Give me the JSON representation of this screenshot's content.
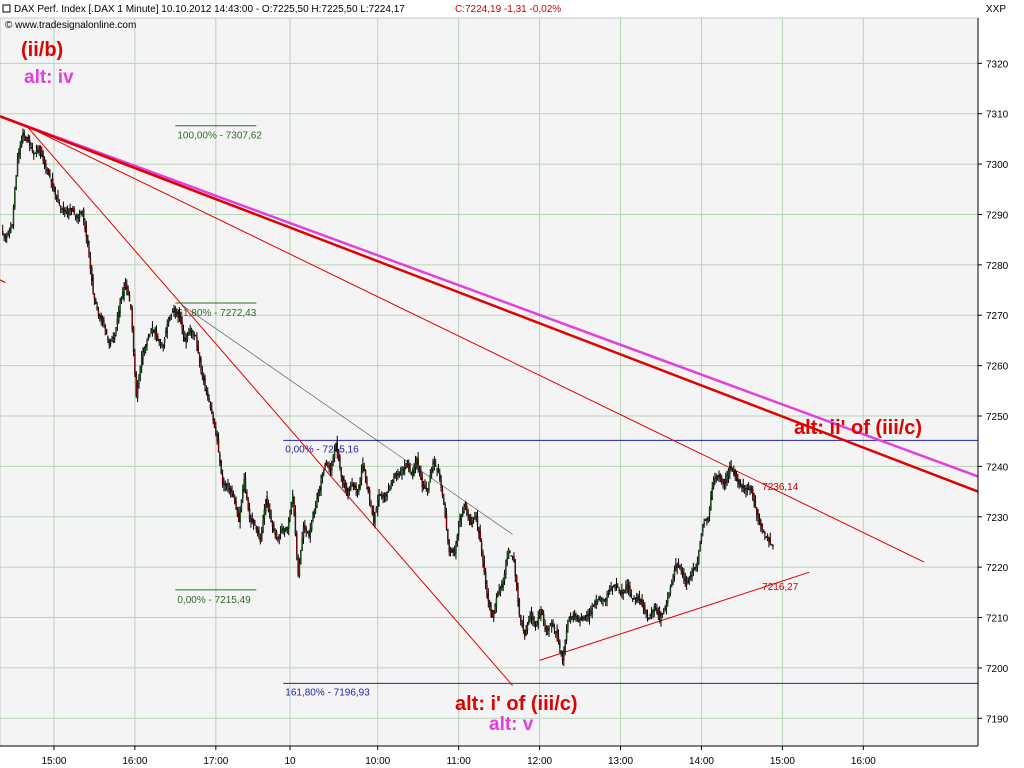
{
  "header": {
    "title": "DAX Perf. Index [.DAX  1 Minute] 10.10.2012 14:43:00 - O:7225,50 H:7225,50 L:7224,17",
    "change": "C:7224,19 -1,31 -0,02%",
    "source": "© www.tradesignalonline.com",
    "axis_label": "XXP"
  },
  "wave_labels": {
    "top_main": "(ii/b)",
    "top_alt": "alt: iv",
    "bottom_main": "alt: i' of (iii/c)",
    "bottom_alt": "alt: v",
    "right_main": "alt: ii' of (iii/c)"
  },
  "colors": {
    "background": "#f4f4f4",
    "grid": "#b9d4b9",
    "up_candle": "#1a8a1a",
    "down_candle": "#cc0000",
    "wick": "#000000",
    "trend_red": "#e00000",
    "trend_magenta": "#e040e0",
    "fib_green": "#2d6b2d",
    "fib_blue": "#2222aa",
    "label_red": "#e00000",
    "label_magenta": "#e040e0"
  },
  "chart_data": {
    "type": "candlestick",
    "x_tick_labels": [
      "15:00",
      "16:00",
      "17:00",
      "10",
      "10:00",
      "11:00",
      "12:00",
      "13:00",
      "14:00",
      "15:00",
      "16:00"
    ],
    "x_tick_positions": [
      3,
      9,
      15,
      20.5,
      27,
      33,
      39,
      45,
      51,
      57,
      63
    ],
    "x_range": [
      -1,
      71.5
    ],
    "y_ticks": [
      7190,
      7200,
      7210,
      7220,
      7230,
      7240,
      7250,
      7260,
      7270,
      7280,
      7290,
      7300,
      7310,
      7320
    ],
    "y_tick_labels": [
      "7190",
      "7200",
      "7210",
      "7220",
      "7230",
      "7240",
      "7250",
      "7260",
      "7270",
      "7280",
      "7290",
      "7300",
      "7310",
      "7320"
    ],
    "ylim": [
      7184.5,
      7329
    ],
    "grid": true,
    "fibonacci_left": [
      {
        "label": "100,00% - 7307,62",
        "value": 7307.62,
        "x_start": 12,
        "x_end": 18
      },
      {
        "label": "61,80% - 7272,43",
        "value": 7272.43,
        "x_start": 12,
        "x_end": 18
      },
      {
        "label": "0,00% - 7215,49",
        "value": 7215.49,
        "x_start": 12,
        "x_end": 18
      }
    ],
    "fibonacci_right": [
      {
        "label": "0,00% - 7245,16",
        "value": 7245.16,
        "x_start": 20,
        "x_end": 71.5
      },
      {
        "label": "161,80% - 7196,93",
        "value": 7196.93,
        "x_start": 20,
        "x_end": 71.5
      }
    ],
    "channel_labels": [
      {
        "label": "7236,14",
        "value": 7236.14,
        "x": 55.5
      },
      {
        "label": "7216,27",
        "value": 7216.27,
        "x": 55.5
      }
    ],
    "trendlines": [
      {
        "color_key": "trend_magenta",
        "width": 2.5,
        "from": [
          -1,
          7309.5
        ],
        "to": [
          71.5,
          7238
        ]
      },
      {
        "color_key": "trend_red",
        "width": 2.5,
        "from": [
          -1,
          7309.5
        ],
        "to": [
          71.5,
          7235
        ]
      },
      {
        "color_key": "trend_red",
        "width": 1,
        "from": [
          1,
          7307.5
        ],
        "to": [
          67.5,
          7221
        ]
      },
      {
        "color_key": "trend_red",
        "width": 1,
        "from": [
          1,
          7307.5
        ],
        "to": [
          37,
          7196.5
        ]
      },
      {
        "color_key": "trend_red",
        "width": 1,
        "from": [
          39,
          7201.5
        ],
        "to": [
          59,
          7219
        ]
      },
      {
        "color_key": "wick",
        "width": 0.7,
        "from": [
          12.5,
          7272
        ],
        "to": [
          37,
          7226.5
        ],
        "opacity": 0.6
      },
      {
        "color_key": "trend_red",
        "width": 1.2,
        "from": [
          -1,
          7277
        ],
        "to": [
          -0.6,
          7276.5
        ]
      }
    ],
    "price_path": [
      [
        -0.9,
        7286.5
      ],
      [
        -0.5,
        7285.5
      ],
      [
        -0.1,
        7288
      ],
      [
        0.3,
        7301
      ],
      [
        0.7,
        7306
      ],
      [
        1.1,
        7304.5
      ],
      [
        1.5,
        7302
      ],
      [
        1.9,
        7303
      ],
      [
        2.3,
        7300
      ],
      [
        2.7,
        7297.5
      ],
      [
        3.1,
        7294
      ],
      [
        3.5,
        7291.5
      ],
      [
        3.9,
        7290.5
      ],
      [
        4.3,
        7291
      ],
      [
        4.7,
        7289.5
      ],
      [
        5.1,
        7290.5
      ],
      [
        5.5,
        7284
      ],
      [
        5.9,
        7274.5
      ],
      [
        6.3,
        7270
      ],
      [
        6.7,
        7268.5
      ],
      [
        7.1,
        7264
      ],
      [
        7.5,
        7266
      ],
      [
        7.9,
        7272.5
      ],
      [
        8.3,
        7276.5
      ],
      [
        8.7,
        7271.5
      ],
      [
        9.1,
        7254
      ],
      [
        9.5,
        7262
      ],
      [
        9.9,
        7265
      ],
      [
        10.3,
        7267.5
      ],
      [
        10.7,
        7265
      ],
      [
        11.1,
        7264
      ],
      [
        11.5,
        7269.5
      ],
      [
        11.9,
        7271
      ],
      [
        12.3,
        7269.5
      ],
      [
        12.7,
        7265
      ],
      [
        13.1,
        7267
      ],
      [
        13.5,
        7266
      ],
      [
        13.9,
        7259
      ],
      [
        14.3,
        7255
      ],
      [
        14.7,
        7250.5
      ],
      [
        15.1,
        7245
      ],
      [
        15.5,
        7236.5
      ],
      [
        15.9,
        7236
      ],
      [
        16.3,
        7234
      ],
      [
        16.7,
        7229
      ],
      [
        17.1,
        7237.5
      ],
      [
        17.5,
        7229.5
      ],
      [
        17.9,
        7228.5
      ],
      [
        18.3,
        7225
      ],
      [
        18.7,
        7233.5
      ],
      [
        19.1,
        7229
      ],
      [
        19.5,
        7225.5
      ],
      [
        19.9,
        7227.5
      ],
      [
        20.3,
        7228
      ],
      [
        20.7,
        7234.5
      ],
      [
        21.1,
        7218.5
      ],
      [
        21.5,
        7228
      ],
      [
        21.9,
        7226.5
      ],
      [
        22.3,
        7231
      ],
      [
        22.7,
        7236
      ],
      [
        23.1,
        7240.5
      ],
      [
        23.5,
        7239.5
      ],
      [
        23.9,
        7244.5
      ],
      [
        24.3,
        7238
      ],
      [
        24.7,
        7234.5
      ],
      [
        25.1,
        7236.5
      ],
      [
        25.5,
        7235
      ],
      [
        25.9,
        7240.5
      ],
      [
        26.3,
        7235
      ],
      [
        26.7,
        7229
      ],
      [
        27.1,
        7234.5
      ],
      [
        27.5,
        7234
      ],
      [
        27.9,
        7236
      ],
      [
        28.3,
        7238.5
      ],
      [
        28.7,
        7238.5
      ],
      [
        29.1,
        7240.5
      ],
      [
        29.5,
        7238.5
      ],
      [
        29.9,
        7241.5
      ],
      [
        30.3,
        7236
      ],
      [
        30.7,
        7235.5
      ],
      [
        31.1,
        7241
      ],
      [
        31.5,
        7239
      ],
      [
        31.9,
        7232.5
      ],
      [
        32.3,
        7223
      ],
      [
        32.7,
        7223
      ],
      [
        33.1,
        7229.5
      ],
      [
        33.5,
        7232.5
      ],
      [
        33.9,
        7228.5
      ],
      [
        34.3,
        7230
      ],
      [
        34.7,
        7223.5
      ],
      [
        35.1,
        7214.5
      ],
      [
        35.5,
        7210
      ],
      [
        35.9,
        7215
      ],
      [
        36.3,
        7217
      ],
      [
        36.7,
        7223.5
      ],
      [
        37.1,
        7221
      ],
      [
        37.5,
        7210.5
      ],
      [
        37.9,
        7206.5
      ],
      [
        38.3,
        7210.5
      ],
      [
        38.7,
        7208.5
      ],
      [
        39.1,
        7211.5
      ],
      [
        39.5,
        7207.5
      ],
      [
        39.9,
        7209
      ],
      [
        40.3,
        7206.5
      ],
      [
        40.7,
        7201.5
      ],
      [
        41.1,
        7209.5
      ],
      [
        41.5,
        7210.5
      ],
      [
        41.9,
        7209.5
      ],
      [
        42.3,
        7210
      ],
      [
        42.7,
        7210.5
      ],
      [
        43.1,
        7213
      ],
      [
        43.5,
        7214
      ],
      [
        43.9,
        7213.5
      ],
      [
        44.3,
        7216
      ],
      [
        44.7,
        7216.5
      ],
      [
        45.1,
        7214.5
      ],
      [
        45.5,
        7216.5
      ],
      [
        45.9,
        7213.5
      ],
      [
        46.3,
        7214
      ],
      [
        46.7,
        7212
      ],
      [
        47.1,
        7210
      ],
      [
        47.5,
        7212
      ],
      [
        47.9,
        7210
      ],
      [
        48.3,
        7211.5
      ],
      [
        48.7,
        7216
      ],
      [
        49.1,
        7220.5
      ],
      [
        49.5,
        7219.5
      ],
      [
        49.9,
        7216.5
      ],
      [
        50.3,
        7219
      ],
      [
        50.7,
        7221
      ],
      [
        51.1,
        7228.5
      ],
      [
        51.5,
        7230
      ],
      [
        51.9,
        7237.5
      ],
      [
        52.3,
        7238
      ],
      [
        52.7,
        7236.5
      ],
      [
        53.1,
        7240
      ],
      [
        53.5,
        7238
      ],
      [
        53.9,
        7236
      ],
      [
        54.3,
        7235.5
      ],
      [
        54.7,
        7235.5
      ],
      [
        55.1,
        7230.5
      ],
      [
        55.5,
        7227.5
      ],
      [
        55.9,
        7225.5
      ],
      [
        56.3,
        7224.2
      ]
    ]
  }
}
